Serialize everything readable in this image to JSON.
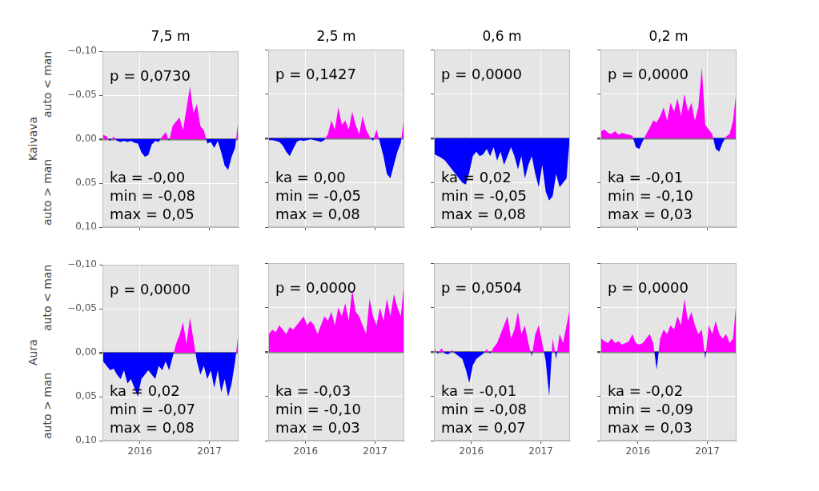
{
  "chart_data": [
    {
      "type": "area",
      "title": "7,5 m",
      "ylabel": "Kaivava",
      "ylabel_ends": {
        "bottom": "auto > man",
        "top": "auto < man"
      },
      "tick_labels": "y",
      "grid": true,
      "colors": [
        "#ff00ff",
        "#0000ff"
      ],
      "annotations": [
        "p = 0,0730",
        "ka = -0,00",
        "min = -0,08",
        "max = 0,05"
      ],
      "xlim": [
        2015.46,
        2017.42
      ],
      "xticks": [
        2016,
        2017
      ],
      "ylim": [
        0.1,
        -0.1
      ],
      "yticks": [
        {
          "value": -0.1,
          "label": "−0,10"
        },
        {
          "value": -0.05,
          "label": "−0,05"
        },
        {
          "value": 0,
          "label": "0,00"
        },
        {
          "value": 0.05,
          "label": "0,05"
        },
        {
          "value": 0.1,
          "label": "0,10"
        }
      ],
      "x": [
        2015.47,
        2015.52,
        2015.57,
        2015.62,
        2015.67,
        2015.72,
        2015.77,
        2015.82,
        2015.87,
        2015.92,
        2015.97,
        2016.02,
        2016.07,
        2016.12,
        2016.17,
        2016.22,
        2016.27,
        2016.32,
        2016.37,
        2016.42,
        2016.47,
        2016.52,
        2016.57,
        2016.62,
        2016.67,
        2016.72,
        2016.77,
        2016.82,
        2016.87,
        2016.92,
        2016.97,
        2017.02,
        2017.07,
        2017.12,
        2017.17,
        2017.22,
        2017.27,
        2017.32,
        2017.37,
        2017.42
      ],
      "values": [
        -0.005,
        -0.003,
        0.002,
        -0.003,
        0.002,
        0.003,
        0.002,
        0.003,
        0.002,
        0.004,
        0.005,
        0.015,
        0.02,
        0.018,
        0.006,
        0.002,
        0.003,
        -0.003,
        -0.008,
        0.002,
        -0.015,
        -0.02,
        -0.025,
        -0.01,
        -0.035,
        -0.06,
        -0.03,
        -0.04,
        -0.015,
        -0.01,
        0.005,
        0.003,
        0.01,
        0.002,
        0.015,
        0.03,
        0.035,
        0.02,
        0.01,
        -0.025
      ]
    },
    {
      "type": "area",
      "title": "2,5 m",
      "tick_labels": false,
      "grid": true,
      "colors": [
        "#ff00ff",
        "#0000ff"
      ],
      "annotations": [
        "p = 0,1427",
        "ka = 0,00",
        "min = -0,05",
        "max = 0,08"
      ],
      "xlim": [
        2015.46,
        2017.42
      ],
      "xticks": [
        2016,
        2017
      ],
      "ylim": [
        0.1,
        -0.1
      ],
      "yticks": [
        {
          "value": -0.1,
          "label": "−0,10"
        },
        {
          "value": -0.05,
          "label": "−0,05"
        },
        {
          "value": 0,
          "label": "0,00"
        },
        {
          "value": 0.05,
          "label": "0,05"
        },
        {
          "value": 0.1,
          "label": "0,10"
        }
      ],
      "x": [
        2015.47,
        2015.52,
        2015.57,
        2015.62,
        2015.67,
        2015.72,
        2015.77,
        2015.82,
        2015.87,
        2015.92,
        2015.97,
        2016.02,
        2016.07,
        2016.12,
        2016.17,
        2016.22,
        2016.27,
        2016.32,
        2016.37,
        2016.42,
        2016.47,
        2016.52,
        2016.57,
        2016.62,
        2016.67,
        2016.72,
        2016.77,
        2016.82,
        2016.87,
        2016.92,
        2016.97,
        2017.02,
        2017.07,
        2017.12,
        2017.17,
        2017.22,
        2017.27,
        2017.32,
        2017.37,
        2017.42
      ],
      "values": [
        0.002,
        0.002,
        0.003,
        0.004,
        0.008,
        0.015,
        0.02,
        0.012,
        0.004,
        0.002,
        0.003,
        0.002,
        0.001,
        0.002,
        0.003,
        0.004,
        0.002,
        -0.005,
        -0.02,
        -0.01,
        -0.035,
        -0.015,
        -0.02,
        -0.01,
        -0.03,
        -0.015,
        -0.005,
        -0.025,
        -0.01,
        -0.002,
        0.003,
        -0.01,
        0.005,
        0.02,
        0.04,
        0.045,
        0.03,
        0.015,
        0.005,
        -0.025
      ]
    },
    {
      "type": "area",
      "title": "0,6 m",
      "tick_labels": false,
      "grid": true,
      "colors": [
        "#ff00ff",
        "#0000ff"
      ],
      "annotations": [
        "p = 0,0000",
        "ka = 0,02",
        "min = -0,05",
        "max = 0,08"
      ],
      "xlim": [
        2015.46,
        2017.42
      ],
      "xticks": [
        2016,
        2017
      ],
      "ylim": [
        0.1,
        -0.1
      ],
      "yticks": [
        {
          "value": -0.1,
          "label": "−0,10"
        },
        {
          "value": -0.05,
          "label": "−0,05"
        },
        {
          "value": 0,
          "label": "0,00"
        },
        {
          "value": 0.05,
          "label": "0,05"
        },
        {
          "value": 0.1,
          "label": "0,10"
        }
      ],
      "x": [
        2015.47,
        2015.52,
        2015.57,
        2015.62,
        2015.67,
        2015.72,
        2015.77,
        2015.82,
        2015.87,
        2015.92,
        2015.97,
        2016.02,
        2016.07,
        2016.12,
        2016.17,
        2016.22,
        2016.27,
        2016.32,
        2016.37,
        2016.42,
        2016.47,
        2016.52,
        2016.57,
        2016.62,
        2016.67,
        2016.72,
        2016.77,
        2016.82,
        2016.87,
        2016.92,
        2016.97,
        2017.02,
        2017.07,
        2017.12,
        2017.17,
        2017.22,
        2017.27,
        2017.32,
        2017.37,
        2017.42
      ],
      "values": [
        0.018,
        0.02,
        0.022,
        0.025,
        0.03,
        0.035,
        0.04,
        0.045,
        0.05,
        0.052,
        0.038,
        0.02,
        0.015,
        0.02,
        0.018,
        0.012,
        0.02,
        0.01,
        0.025,
        0.015,
        0.03,
        0.02,
        0.01,
        0.02,
        0.035,
        0.02,
        0.045,
        0.03,
        0.02,
        0.04,
        0.055,
        0.03,
        0.06,
        0.07,
        0.065,
        0.04,
        0.055,
        0.05,
        0.045,
        -0.005
      ]
    },
    {
      "type": "area",
      "title": "0,2 m",
      "tick_labels": false,
      "grid": true,
      "colors": [
        "#ff00ff",
        "#0000ff"
      ],
      "annotations": [
        "p = 0,0000",
        "ka = -0,01",
        "min = -0,10",
        "max = 0,03"
      ],
      "xlim": [
        2015.46,
        2017.42
      ],
      "xticks": [
        2016,
        2017
      ],
      "ylim": [
        0.1,
        -0.1
      ],
      "yticks": [
        {
          "value": -0.1,
          "label": "−0,10"
        },
        {
          "value": -0.05,
          "label": "−0,05"
        },
        {
          "value": 0,
          "label": "0,00"
        },
        {
          "value": 0.05,
          "label": "0,05"
        },
        {
          "value": 0.1,
          "label": "0,10"
        }
      ],
      "x": [
        2015.47,
        2015.52,
        2015.57,
        2015.62,
        2015.67,
        2015.72,
        2015.77,
        2015.82,
        2015.87,
        2015.92,
        2015.97,
        2016.02,
        2016.07,
        2016.12,
        2016.17,
        2016.22,
        2016.27,
        2016.32,
        2016.37,
        2016.42,
        2016.47,
        2016.52,
        2016.57,
        2016.62,
        2016.67,
        2016.72,
        2016.77,
        2016.82,
        2016.87,
        2016.92,
        2016.97,
        2017.02,
        2017.07,
        2017.12,
        2017.17,
        2017.22,
        2017.27,
        2017.32,
        2017.37,
        2017.42
      ],
      "values": [
        -0.008,
        -0.01,
        -0.006,
        -0.005,
        -0.008,
        -0.004,
        -0.006,
        -0.005,
        -0.004,
        -0.003,
        0.01,
        0.012,
        0.003,
        -0.005,
        -0.012,
        -0.02,
        -0.018,
        -0.025,
        -0.035,
        -0.02,
        -0.04,
        -0.03,
        -0.045,
        -0.025,
        -0.05,
        -0.03,
        -0.04,
        -0.02,
        -0.035,
        -0.08,
        -0.015,
        -0.01,
        -0.005,
        0.012,
        0.015,
        0.005,
        -0.002,
        -0.005,
        -0.02,
        -0.055
      ]
    },
    {
      "type": "area",
      "ylabel": "Aura",
      "ylabel_ends": {
        "bottom": "auto > man",
        "top": "auto < man"
      },
      "tick_labels": true,
      "grid": true,
      "colors": [
        "#ff00ff",
        "#0000ff"
      ],
      "annotations": [
        "p = 0,0000",
        "ka = 0,02",
        "min = -0,07",
        "max = 0,08"
      ],
      "xlim": [
        2015.46,
        2017.42
      ],
      "xticks": [
        2016,
        2017
      ],
      "ylim": [
        0.1,
        -0.1
      ],
      "yticks": [
        {
          "value": -0.1,
          "label": "−0,10"
        },
        {
          "value": -0.05,
          "label": "−0,05"
        },
        {
          "value": 0,
          "label": "0,00"
        },
        {
          "value": 0.05,
          "label": "0,05"
        },
        {
          "value": 0.1,
          "label": "0,10"
        }
      ],
      "x": [
        2015.47,
        2015.52,
        2015.57,
        2015.62,
        2015.67,
        2015.72,
        2015.77,
        2015.82,
        2015.87,
        2015.92,
        2015.97,
        2016.02,
        2016.07,
        2016.12,
        2016.17,
        2016.22,
        2016.27,
        2016.32,
        2016.37,
        2016.42,
        2016.47,
        2016.52,
        2016.57,
        2016.62,
        2016.67,
        2016.72,
        2016.77,
        2016.82,
        2016.87,
        2016.92,
        2016.97,
        2017.02,
        2017.07,
        2017.12,
        2017.17,
        2017.22,
        2017.27,
        2017.32,
        2017.37,
        2017.42
      ],
      "values": [
        0.01,
        0.015,
        0.02,
        0.018,
        0.025,
        0.03,
        0.02,
        0.035,
        0.03,
        0.04,
        0.05,
        0.03,
        0.025,
        0.02,
        0.025,
        0.03,
        0.015,
        0.02,
        0.01,
        0.02,
        0.005,
        -0.01,
        -0.02,
        -0.035,
        -0.01,
        -0.04,
        -0.015,
        0.01,
        0.025,
        0.015,
        0.03,
        0.02,
        0.04,
        0.02,
        0.045,
        0.03,
        0.05,
        0.035,
        0.01,
        -0.025
      ]
    },
    {
      "type": "area",
      "tick_labels": "x",
      "grid": true,
      "colors": [
        "#ff00ff",
        "#0000ff"
      ],
      "annotations": [
        "p = 0,0000",
        "ka = -0,03",
        "min = -0,10",
        "max = 0,03"
      ],
      "xlim": [
        2015.46,
        2017.42
      ],
      "xticks": [
        2016,
        2017
      ],
      "ylim": [
        0.1,
        -0.1
      ],
      "yticks": [
        {
          "value": -0.1,
          "label": "−0,10"
        },
        {
          "value": -0.05,
          "label": "−0,05"
        },
        {
          "value": 0,
          "label": "0,00"
        },
        {
          "value": 0.05,
          "label": "0,05"
        },
        {
          "value": 0.1,
          "label": "0,10"
        }
      ],
      "x": [
        2015.47,
        2015.52,
        2015.57,
        2015.62,
        2015.67,
        2015.72,
        2015.77,
        2015.82,
        2015.87,
        2015.92,
        2015.97,
        2016.02,
        2016.07,
        2016.12,
        2016.17,
        2016.22,
        2016.27,
        2016.32,
        2016.37,
        2016.42,
        2016.47,
        2016.52,
        2016.57,
        2016.62,
        2016.67,
        2016.72,
        2016.77,
        2016.82,
        2016.87,
        2016.92,
        2016.97,
        2017.02,
        2017.07,
        2017.12,
        2017.17,
        2017.22,
        2017.27,
        2017.32,
        2017.37,
        2017.42
      ],
      "values": [
        -0.02,
        -0.025,
        -0.022,
        -0.03,
        -0.025,
        -0.02,
        -0.028,
        -0.025,
        -0.03,
        -0.035,
        -0.04,
        -0.03,
        -0.035,
        -0.03,
        -0.02,
        -0.03,
        -0.04,
        -0.035,
        -0.045,
        -0.03,
        -0.05,
        -0.04,
        -0.055,
        -0.035,
        -0.07,
        -0.045,
        -0.04,
        -0.03,
        -0.02,
        -0.06,
        -0.04,
        -0.03,
        -0.05,
        -0.035,
        -0.06,
        -0.04,
        -0.065,
        -0.05,
        -0.04,
        -0.08
      ]
    },
    {
      "type": "area",
      "tick_labels": "x",
      "grid": true,
      "colors": [
        "#ff00ff",
        "#0000ff"
      ],
      "annotations": [
        "p = 0,0504",
        "ka = -0,01",
        "min = -0,08",
        "max = 0,07"
      ],
      "xlim": [
        2015.46,
        2017.42
      ],
      "xticks": [
        2016,
        2017
      ],
      "ylim": [
        0.1,
        -0.1
      ],
      "yticks": [
        {
          "value": -0.1,
          "label": "−0,10"
        },
        {
          "value": -0.05,
          "label": "−0,05"
        },
        {
          "value": 0,
          "label": "0,00"
        },
        {
          "value": 0.05,
          "label": "0,05"
        },
        {
          "value": 0.1,
          "label": "0,10"
        }
      ],
      "x": [
        2015.47,
        2015.52,
        2015.57,
        2015.62,
        2015.67,
        2015.72,
        2015.77,
        2015.82,
        2015.87,
        2015.92,
        2015.97,
        2016.02,
        2016.07,
        2016.12,
        2016.17,
        2016.22,
        2016.27,
        2016.32,
        2016.37,
        2016.42,
        2016.47,
        2016.52,
        2016.57,
        2016.62,
        2016.67,
        2016.72,
        2016.77,
        2016.82,
        2016.87,
        2016.92,
        2016.97,
        2017.02,
        2017.07,
        2017.12,
        2017.17,
        2017.22,
        2017.27,
        2017.32,
        2017.37,
        2017.42
      ],
      "values": [
        -0.003,
        0.002,
        -0.004,
        0.002,
        0.003,
        -0.002,
        0.002,
        0.005,
        0.008,
        0.02,
        0.035,
        0.015,
        0.008,
        0.005,
        0.002,
        -0.003,
        0.002,
        -0.005,
        -0.01,
        -0.02,
        -0.03,
        -0.04,
        -0.015,
        -0.025,
        -0.045,
        -0.02,
        -0.03,
        -0.01,
        0.005,
        -0.02,
        -0.03,
        -0.01,
        0.01,
        0.05,
        -0.015,
        0.008,
        -0.02,
        -0.01,
        -0.03,
        -0.05
      ]
    },
    {
      "type": "area",
      "tick_labels": "x",
      "grid": true,
      "colors": [
        "#ff00ff",
        "#0000ff"
      ],
      "annotations": [
        "p = 0,0000",
        "ka = -0,02",
        "min = -0,09",
        "max = 0,03"
      ],
      "xlim": [
        2015.46,
        2017.42
      ],
      "xticks": [
        2016,
        2017
      ],
      "ylim": [
        0.1,
        -0.1
      ],
      "yticks": [
        {
          "value": -0.1,
          "label": "−0,10"
        },
        {
          "value": -0.05,
          "label": "−0,05"
        },
        {
          "value": 0,
          "label": "0,00"
        },
        {
          "value": 0.05,
          "label": "0,05"
        },
        {
          "value": 0.1,
          "label": "0,10"
        }
      ],
      "x": [
        2015.47,
        2015.52,
        2015.57,
        2015.62,
        2015.67,
        2015.72,
        2015.77,
        2015.82,
        2015.87,
        2015.92,
        2015.97,
        2016.02,
        2016.07,
        2016.12,
        2016.17,
        2016.22,
        2016.27,
        2016.32,
        2016.37,
        2016.42,
        2016.47,
        2016.52,
        2016.57,
        2016.62,
        2016.67,
        2016.72,
        2016.77,
        2016.82,
        2016.87,
        2016.92,
        2016.97,
        2017.02,
        2017.07,
        2017.12,
        2017.17,
        2017.22,
        2017.27,
        2017.32,
        2017.37,
        2017.42
      ],
      "values": [
        -0.015,
        -0.012,
        -0.01,
        -0.015,
        -0.01,
        -0.012,
        -0.008,
        -0.01,
        -0.012,
        -0.02,
        -0.01,
        -0.008,
        -0.01,
        -0.015,
        -0.02,
        -0.01,
        0.02,
        -0.015,
        -0.025,
        -0.02,
        -0.03,
        -0.025,
        -0.04,
        -0.03,
        -0.06,
        -0.035,
        -0.045,
        -0.03,
        -0.02,
        -0.025,
        0.008,
        -0.03,
        -0.02,
        -0.035,
        -0.02,
        -0.015,
        -0.02,
        -0.01,
        -0.015,
        -0.06
      ]
    }
  ]
}
